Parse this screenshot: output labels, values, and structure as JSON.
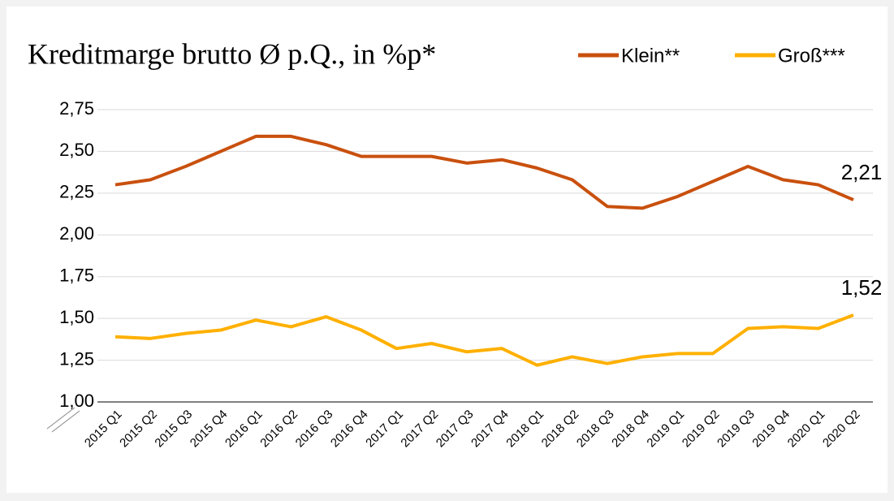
{
  "chart_data": {
    "type": "line",
    "title": "Kreditmarge brutto Ø p.Q., in %p*",
    "categories": [
      "2015 Q1",
      "2015 Q2",
      "2015 Q3",
      "2015 Q4",
      "2016 Q1",
      "2016 Q2",
      "2016 Q3",
      "2016 Q4",
      "2017 Q1",
      "2017 Q2",
      "2017 Q3",
      "2017 Q4",
      "2018 Q1",
      "2018 Q2",
      "2018 Q3",
      "2018 Q4",
      "2019 Q1",
      "2019 Q2",
      "2019 Q3",
      "2019 Q4",
      "2020 Q1",
      "2020 Q2"
    ],
    "series": [
      {
        "name": "Klein**",
        "color": "#c9500e",
        "values": [
          2.3,
          2.33,
          2.41,
          2.5,
          2.59,
          2.59,
          2.54,
          2.47,
          2.47,
          2.47,
          2.43,
          2.45,
          2.4,
          2.33,
          2.17,
          2.16,
          2.23,
          2.32,
          2.41,
          2.33,
          2.3,
          2.21
        ],
        "value_labels": [
          null,
          null,
          null,
          null,
          null,
          null,
          null,
          null,
          null,
          null,
          null,
          null,
          null,
          null,
          null,
          null,
          null,
          null,
          null,
          null,
          null,
          "2,21"
        ]
      },
      {
        "name": "Groß***",
        "color": "#ffb000",
        "values": [
          1.39,
          1.38,
          1.41,
          1.43,
          1.49,
          1.45,
          1.51,
          1.43,
          1.32,
          1.35,
          1.3,
          1.32,
          1.22,
          1.27,
          1.23,
          1.27,
          1.29,
          1.29,
          1.44,
          1.45,
          1.44,
          1.52
        ],
        "value_labels": [
          null,
          null,
          null,
          null,
          null,
          null,
          null,
          null,
          null,
          null,
          null,
          null,
          null,
          null,
          null,
          null,
          null,
          null,
          null,
          null,
          null,
          "1,52"
        ]
      }
    ],
    "ylim": [
      1,
      2.75
    ],
    "yticks": [
      {
        "value": 1,
        "label": "1,00"
      },
      {
        "value": 1.25,
        "label": "1,25"
      },
      {
        "value": 1.5,
        "label": "1,50"
      },
      {
        "value": 1.75,
        "label": "1,75"
      },
      {
        "value": 2,
        "label": "2,00"
      },
      {
        "value": 2.25,
        "label": "2,25"
      },
      {
        "value": 2.5,
        "label": "2,50"
      },
      {
        "value": 2.75,
        "label": "2,75"
      }
    ],
    "grid": true
  }
}
